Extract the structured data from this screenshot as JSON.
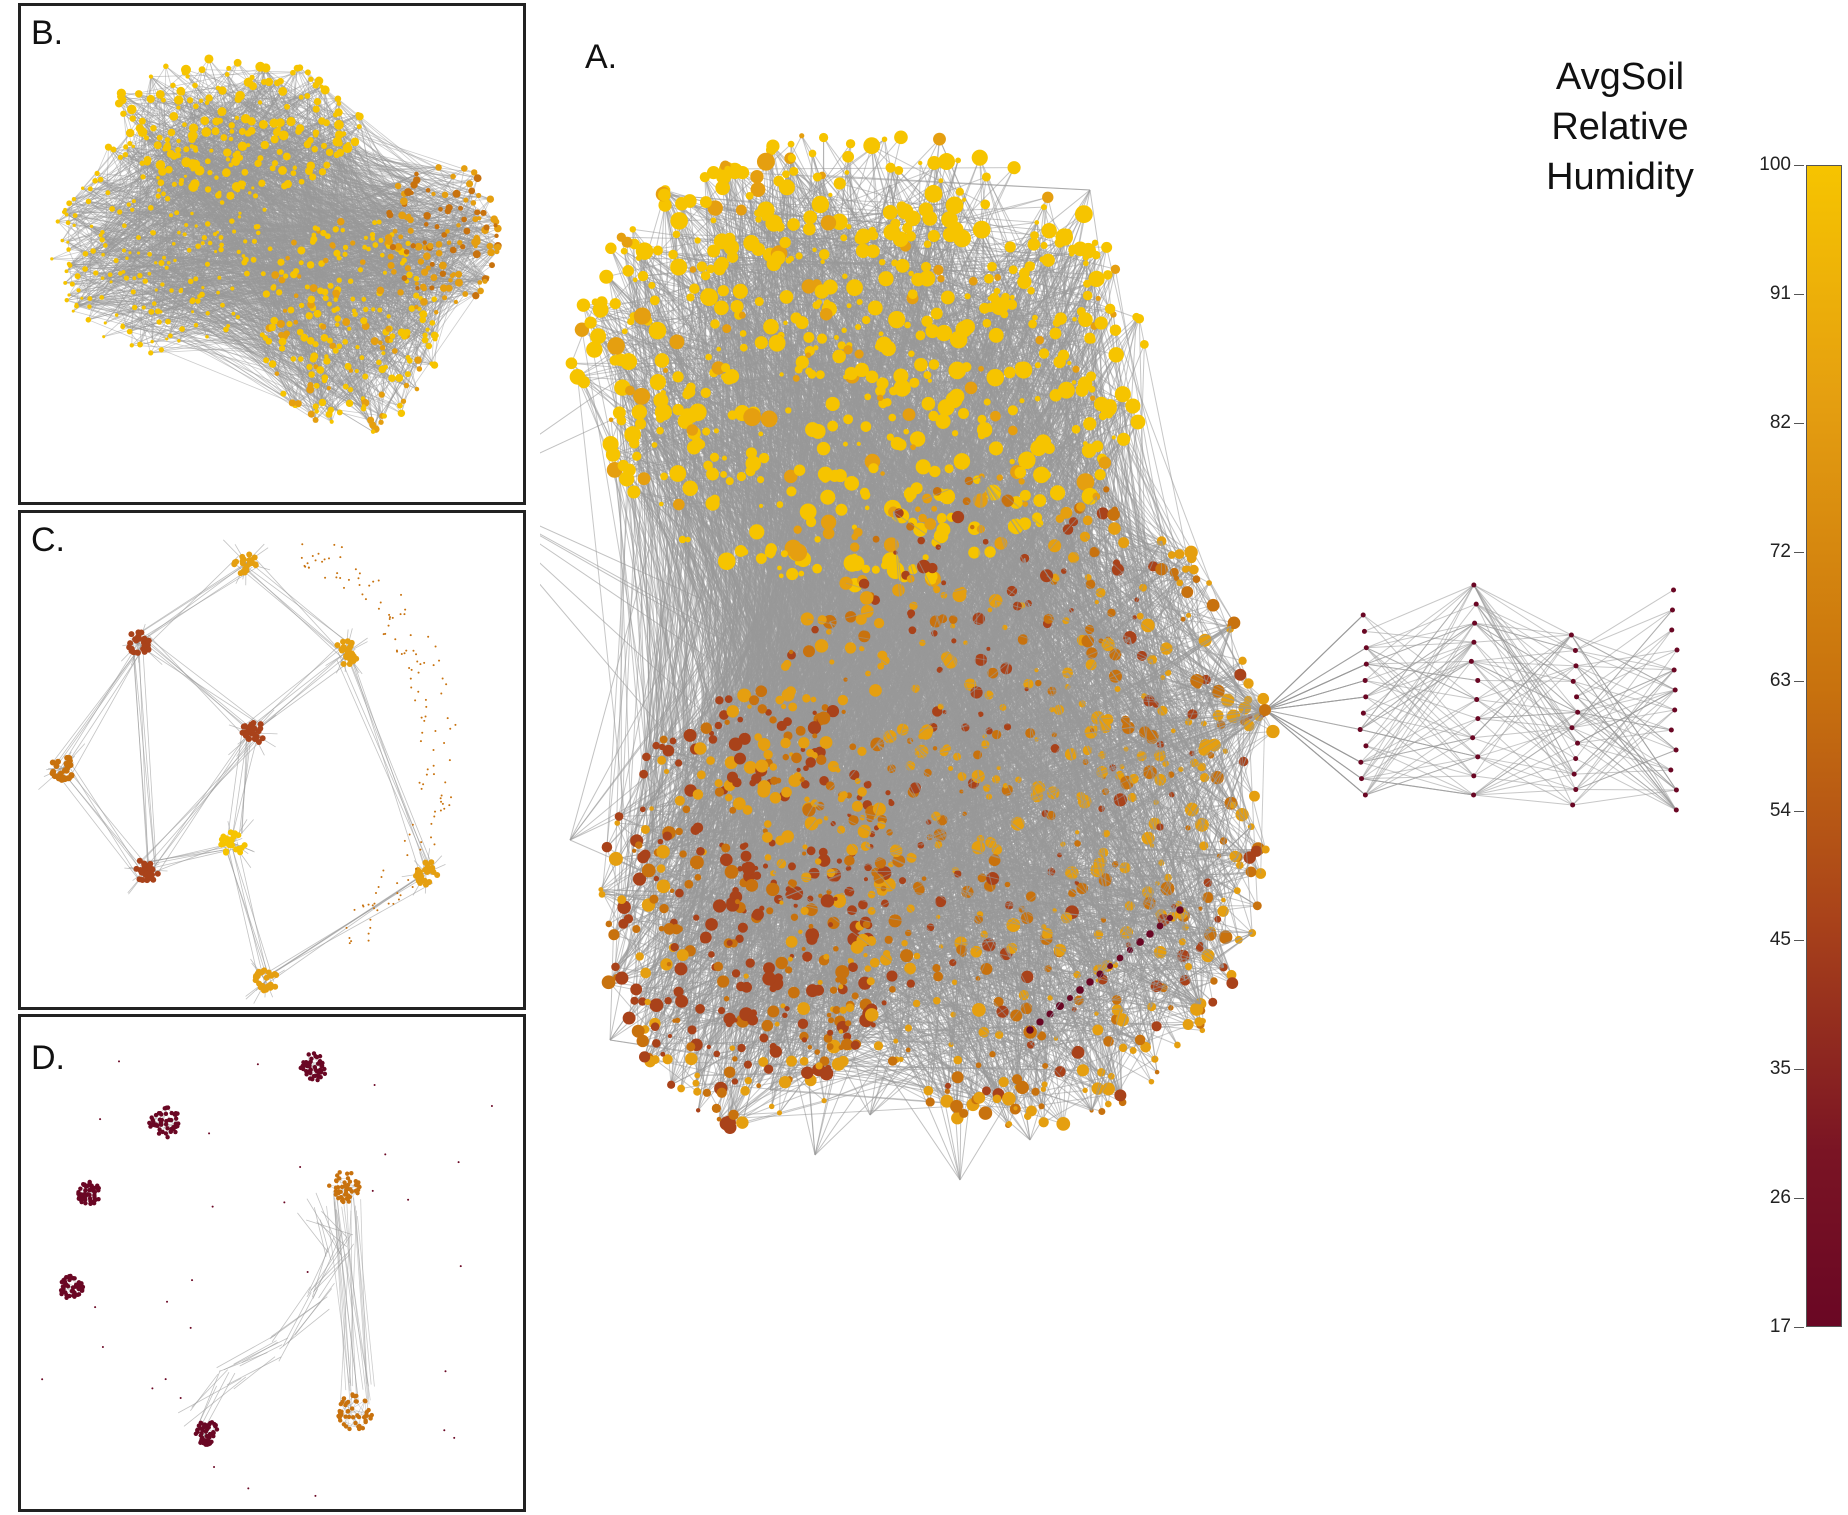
{
  "panels": {
    "a": {
      "label": "A."
    },
    "b": {
      "label": "B."
    },
    "c": {
      "label": "C."
    },
    "d": {
      "label": "D."
    }
  },
  "legend": {
    "title_lines": [
      "AvgSoil",
      "Relative",
      "Humidity"
    ],
    "ticks": [
      "100",
      "91",
      "82",
      "72",
      "63",
      "54",
      "45",
      "35",
      "26",
      "17"
    ],
    "colors": {
      "high": "#f6c400",
      "mid_high": "#e59f10",
      "mid": "#c8720e",
      "mid_low": "#a9421a",
      "low": "#6a0724",
      "edge": "#999999"
    }
  }
}
